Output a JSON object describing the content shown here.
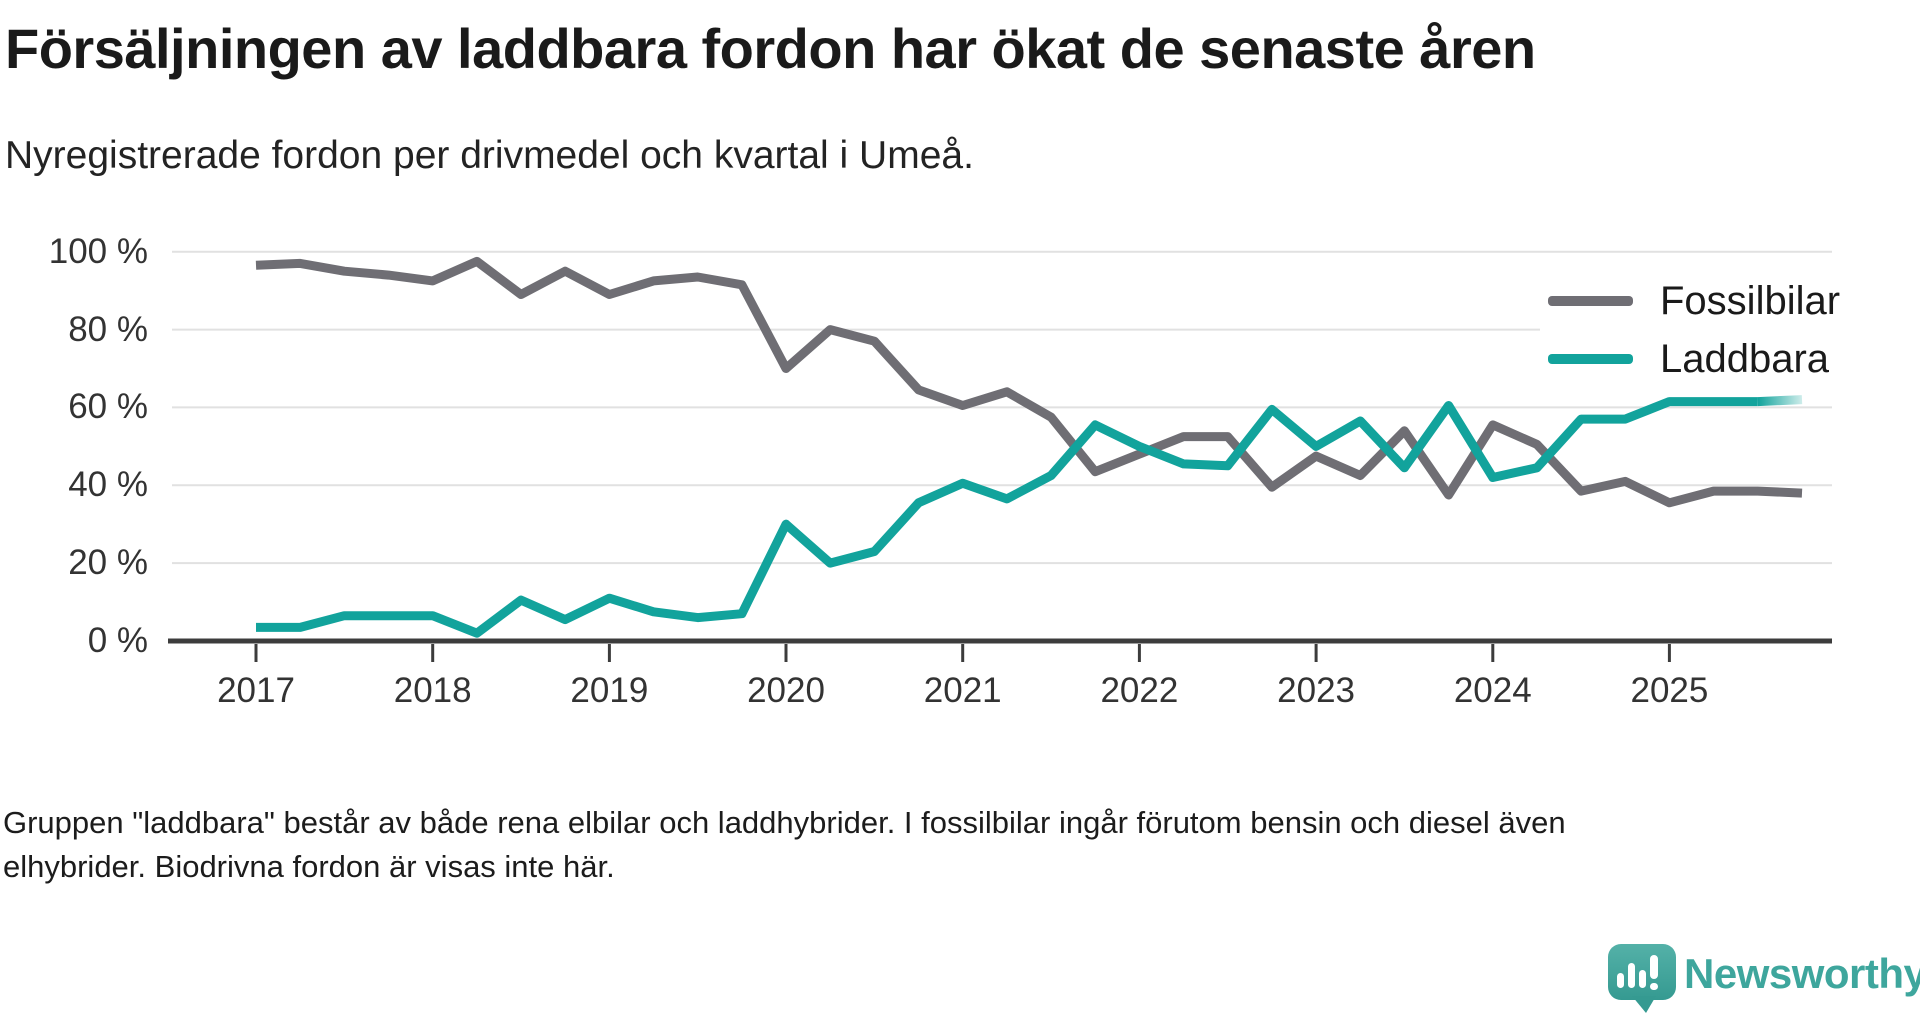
{
  "header": {
    "title": "Försäljningen av laddbara fordon har ökat de senaste åren",
    "subtitle": "Nyregistrerade fordon per drivmedel och kvartal i Umeå."
  },
  "chart_data": {
    "type": "line",
    "unit": "%",
    "ylim": [
      0,
      100
    ],
    "grid": "horizontal",
    "legend_position": "top-right",
    "x_tick_labels": [
      "2017",
      "2018",
      "2019",
      "2020",
      "2021",
      "2022",
      "2023",
      "2024",
      "2025"
    ],
    "y_ticks": [
      {
        "value": 100,
        "label": "100 %"
      },
      {
        "value": 80,
        "label": "80 %"
      },
      {
        "value": 60,
        "label": "60 %"
      },
      {
        "value": 40,
        "label": "40 %"
      },
      {
        "value": 20,
        "label": "20 %"
      },
      {
        "value": 0,
        "label": "0 %"
      }
    ],
    "x_quarters": [
      "2017 Q1",
      "2017 Q2",
      "2017 Q3",
      "2017 Q4",
      "2018 Q1",
      "2018 Q2",
      "2018 Q3",
      "2018 Q4",
      "2019 Q1",
      "2019 Q2",
      "2019 Q3",
      "2019 Q4",
      "2020 Q1",
      "2020 Q2",
      "2020 Q3",
      "2020 Q4",
      "2021 Q1",
      "2021 Q2",
      "2021 Q3",
      "2021 Q4",
      "2022 Q1",
      "2022 Q2",
      "2022 Q3",
      "2022 Q4",
      "2023 Q1",
      "2023 Q2",
      "2023 Q3",
      "2023 Q4",
      "2024 Q1",
      "2024 Q2",
      "2024 Q3",
      "2024 Q4",
      "2025 Q1",
      "2025 Q2",
      "2025 Q3",
      "2025 Q4"
    ],
    "series": [
      {
        "name": "Fossilbilar",
        "color": "#6f6e74",
        "values": [
          96.5,
          97,
          95,
          94,
          92.5,
          97.5,
          89,
          95,
          89,
          92.5,
          93.5,
          91.5,
          70,
          80,
          77,
          64.5,
          60.5,
          64,
          57.5,
          43.5,
          48,
          52.5,
          52.5,
          39.5,
          47.5,
          42.5,
          54,
          37.5,
          55.5,
          50.5,
          38.5,
          41,
          35.5,
          38.5,
          38.5,
          38
        ]
      },
      {
        "name": "Laddbara",
        "color": "#12a39c",
        "fade_last_segment": true,
        "fade_color": "#cdecea",
        "values": [
          3.5,
          3.5,
          6.5,
          6.5,
          6.5,
          2,
          10.5,
          5.5,
          11,
          7.5,
          6,
          7,
          30,
          20,
          23,
          35.5,
          40.5,
          36.5,
          42.5,
          55.5,
          50,
          45.5,
          45,
          59.5,
          50,
          56.5,
          44.5,
          60.5,
          42,
          44.5,
          57,
          57,
          61.5,
          61.5,
          61.5,
          62
        ]
      }
    ],
    "axis_color": "#3c3c3c",
    "grid_color": "#e1e1e1"
  },
  "footer": {
    "line1": "Gruppen \"laddbara\" består av både rena elbilar och laddhybrider. I fossilbilar ingår förutom bensin och diesel även",
    "line2": "elhybrider. Biodrivna fordon är visas inte här."
  },
  "logo": {
    "text": "Newsworthy",
    "color": "#3EA69D"
  }
}
